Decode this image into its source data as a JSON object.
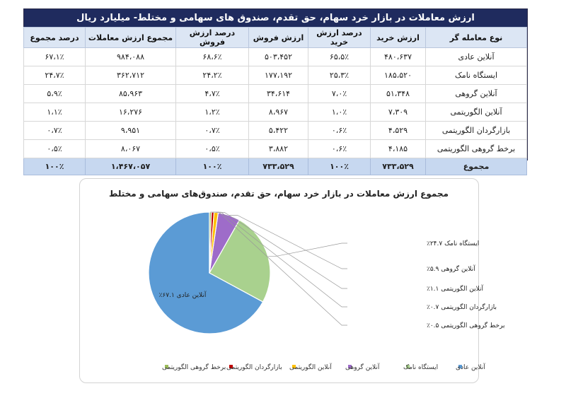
{
  "table": {
    "title": "ارزش معاملات در بازار خرد سهام، حق تقدم، صندوق های سهامی و مختلط- میلیارد ریال",
    "headers": [
      "نوع معامله گر",
      "ارزش خرید",
      "درصد ارزش خرید",
      "ارزش فروش",
      "درصد ارزش فروش",
      "مجموع ارزش معاملات",
      "درصد مجموع"
    ],
    "rows": [
      [
        "آنلاین عادی",
        "۴۸۰،۶۳۷",
        "۶۵،۵٪",
        "۵۰۳،۴۵۲",
        "۶۸،۶٪",
        "۹۸۴،۰۸۸",
        "۶۷،۱٪"
      ],
      [
        "ایستگاه نامک",
        "۱۸۵،۵۲۰",
        "۲۵،۳٪",
        "۱۷۷،۱۹۲",
        "۲۴،۲٪",
        "۳۶۲،۷۱۲",
        "۲۴،۷٪"
      ],
      [
        "آنلاین گروهی",
        "۵۱،۳۴۸",
        "۷،۰٪",
        "۳۴،۶۱۴",
        "۴،۷٪",
        "۸۵،۹۶۳",
        "۵،۹٪"
      ],
      [
        "آنلاین الگوریتمی",
        "۷،۳۰۹",
        "۱،۰٪",
        "۸،۹۶۷",
        "۱،۲٪",
        "۱۶،۲۷۶",
        "۱،۱٪"
      ],
      [
        "بازارگردان الگوریتمی",
        "۴،۵۲۹",
        "۰،۶٪",
        "۵،۴۲۲",
        "۰،۷٪",
        "۹،۹۵۱",
        "۰،۷٪"
      ],
      [
        "برخط گروهی الگوریتمی",
        "۴،۱۸۵",
        "۰،۶٪",
        "۳،۸۸۲",
        "۰،۵٪",
        "۸،۰۶۷",
        "۰،۵٪"
      ]
    ],
    "total_row": [
      "مجموع",
      "۷۳۳،۵۲۹",
      "۱۰۰٪",
      "۷۳۳،۵۲۹",
      "۱۰۰٪",
      "۱،۴۶۷،۰۵۷",
      "۱۰۰٪"
    ]
  },
  "chart_data": {
    "type": "pie",
    "title": "مجموع ارزش معاملات در بازار خرد سهام، حق تقدم، صندوق‌های سهامی و مختلط",
    "categories": [
      "آنلاین عادی",
      "ایستگاه نامک",
      "آنلاین گروهی",
      "آنلاین الگوریتمی",
      "بازارگردان الگوریتمی",
      "برخط گروهی الگوریتمی"
    ],
    "values": [
      67.1,
      24.7,
      5.9,
      1.1,
      0.7,
      0.5
    ],
    "colors": [
      "#5b9bd5",
      "#a9d18e",
      "#9e6cc9",
      "#ffc000",
      "#c00000",
      "#9bbb59"
    ],
    "data_labels": [
      "آنلاین عادی ۶۷.۱٪",
      "ایستگاه نامک ۲۴.۷٪",
      "آنلاین گروهی ۵.۹٪",
      "آنلاین الگوریتمی ۱.۱٪",
      "بازارگردان الگوریتمی ۰.۷٪",
      "برخط گروهی الگوریتمی ۰.۵٪"
    ],
    "legend_position": "bottom"
  }
}
